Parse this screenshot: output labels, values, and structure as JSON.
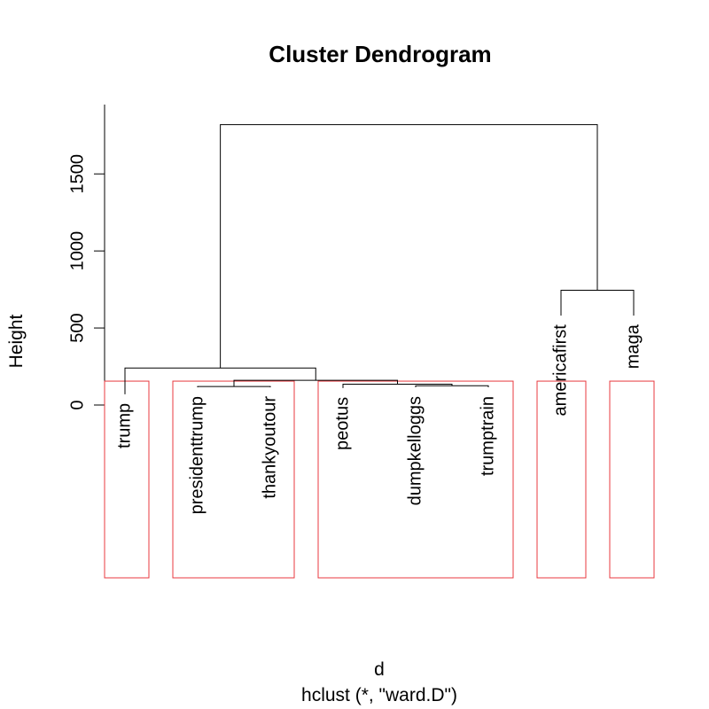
{
  "chart_data": {
    "type": "dendrogram",
    "title": "Cluster Dendrogram",
    "xlabel": "d",
    "sub_label": "hclust (*, \"ward.D\")",
    "ylabel": "Height",
    "ylim": [
      0,
      1950
    ],
    "y_ticks": [
      0,
      500,
      1000,
      1500
    ],
    "labels": [
      "trump",
      "presidenttrump",
      "thankyoutour",
      "peotus",
      "dumpkelloggs",
      "trumptrain",
      "americafirst",
      "maga"
    ],
    "label_heights": [
      70,
      115,
      115,
      110,
      115,
      115,
      580,
      580
    ],
    "merges": [
      {
        "height": 120,
        "left": 2,
        "right": 3
      },
      {
        "height": 125,
        "left": 5,
        "right": 6
      },
      {
        "height": 135,
        "left": 4,
        "right": "m2"
      },
      {
        "height": 160,
        "left": "m1",
        "right": "m3"
      },
      {
        "height": 240,
        "left": 1,
        "right": "m4"
      },
      {
        "height": 745,
        "left": 7,
        "right": 8
      },
      {
        "height": 1820,
        "left": "m5",
        "right": "m6"
      }
    ],
    "rect_cut_height": 155,
    "rect_groups": [
      [
        1,
        1
      ],
      [
        2,
        3
      ],
      [
        4,
        6
      ],
      [
        7,
        7
      ],
      [
        8,
        8
      ]
    ],
    "line_color": "#000000",
    "rect_color": "#e8393f"
  }
}
